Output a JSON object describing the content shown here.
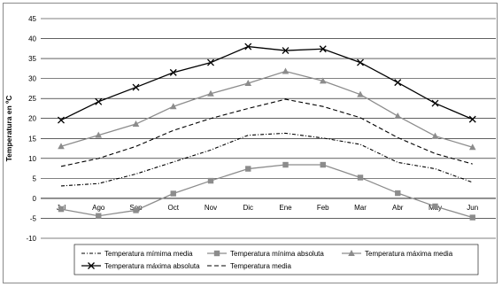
{
  "chart_data": {
    "type": "line",
    "title": "",
    "xlabel": "",
    "ylabel": "Temperatura en ºC",
    "ylim": [
      -10,
      45
    ],
    "yticks": [
      -10,
      -5,
      0,
      5,
      10,
      15,
      20,
      25,
      30,
      35,
      40,
      45
    ],
    "grid": true,
    "legend_position": "bottom",
    "categories": [
      "Jul",
      "Ago",
      "Sep",
      "Oct",
      "Nov",
      "Dic",
      "Ene",
      "Feb",
      "Mar",
      "Abr",
      "May",
      "Jun"
    ],
    "series": [
      {
        "name": "Temperatura mímima media",
        "color": "#000000",
        "style": "dash-dot",
        "marker": "none",
        "values": [
          3.1,
          3.7,
          6.1,
          9.1,
          12.1,
          15.8,
          16.3,
          15.1,
          13.5,
          9.0,
          7.4,
          4.0
        ]
      },
      {
        "name": "Temperatura mínima absoluta",
        "color": "#8c8c8c",
        "style": "solid",
        "marker": "square",
        "values": [
          -2.7,
          -4.4,
          -3.0,
          1.2,
          4.4,
          7.4,
          8.4,
          8.4,
          5.2,
          1.3,
          -2.0,
          -4.8
        ]
      },
      {
        "name": "Temperatura máxima media",
        "color": "#8c8c8c",
        "style": "solid",
        "marker": "triangle",
        "values": [
          13.0,
          15.8,
          18.6,
          23.0,
          26.2,
          28.8,
          31.8,
          29.4,
          26.0,
          20.6,
          15.6,
          12.8
        ]
      },
      {
        "name": "Temperatura máxima absoluta",
        "color": "#000000",
        "style": "solid",
        "marker": "x",
        "values": [
          19.6,
          24.2,
          27.8,
          31.5,
          34.0,
          38.0,
          37.0,
          37.4,
          34.0,
          29.0,
          23.8,
          19.8
        ]
      },
      {
        "name": "Temperatura media",
        "color": "#000000",
        "style": "dash",
        "marker": "none",
        "values": [
          8.0,
          10.0,
          13.0,
          17.0,
          20.0,
          22.5,
          24.8,
          23.0,
          20.2,
          15.2,
          11.2,
          8.6
        ]
      }
    ]
  }
}
